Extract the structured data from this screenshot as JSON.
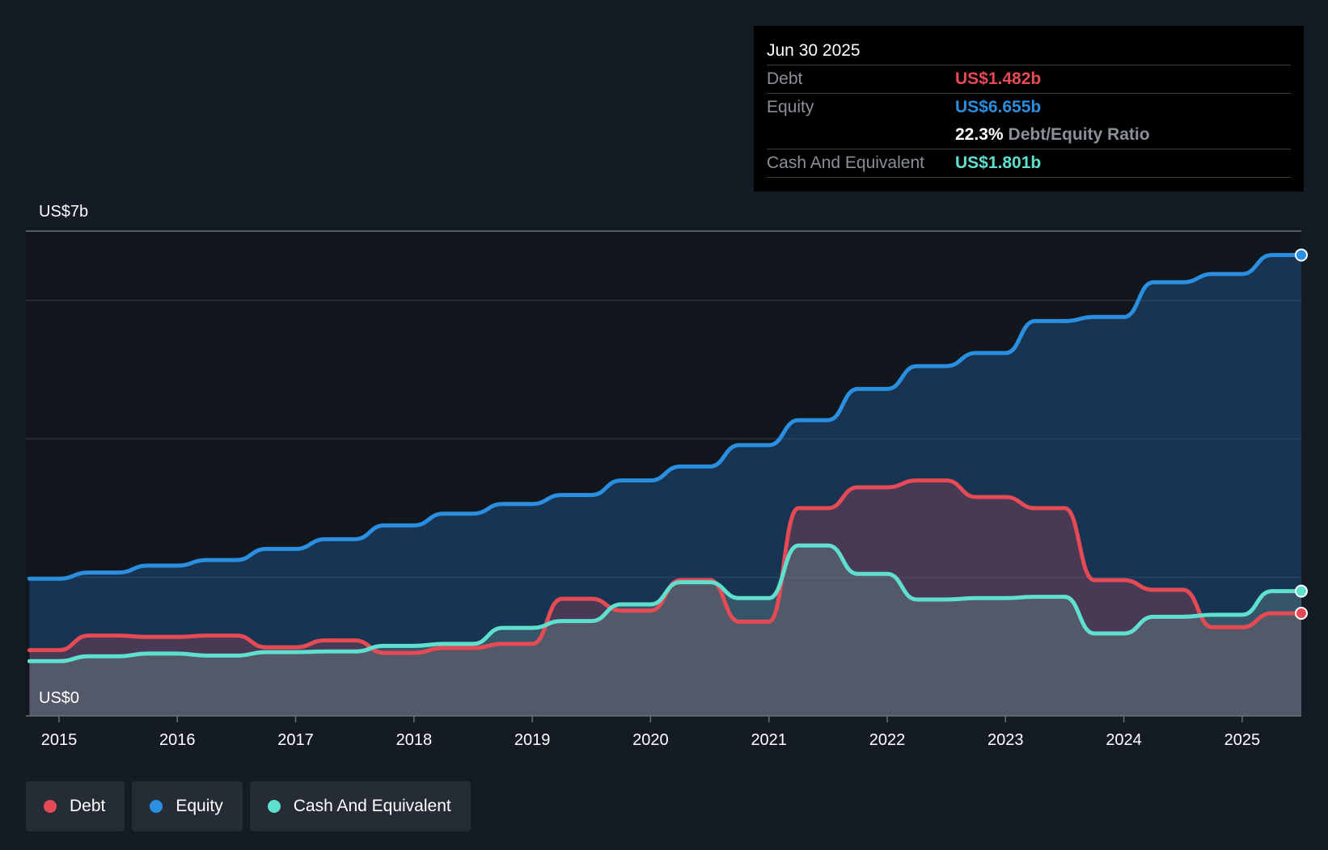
{
  "tooltip": {
    "date": "Jun 30 2025",
    "debt_label": "Debt",
    "debt_value": "US$1.482b",
    "equity_label": "Equity",
    "equity_value": "US$6.655b",
    "ratio_value": "22.3%",
    "ratio_label": "Debt/Equity Ratio",
    "cash_label": "Cash And Equivalent",
    "cash_value": "US$1.801b"
  },
  "colors": {
    "debt": "#e64a55",
    "equity": "#2a8fe0",
    "cash": "#5fe0cf",
    "background": "#151b24"
  },
  "legend": [
    {
      "label": "Debt",
      "color": "#e64a55"
    },
    {
      "label": "Equity",
      "color": "#2a8fe0"
    },
    {
      "label": "Cash And Equivalent",
      "color": "#5fe0cf"
    }
  ],
  "chart_data": {
    "type": "line",
    "title": "",
    "xlabel": "",
    "ylabel": "",
    "y_top_label": "US$7b",
    "y_bottom_label": "US$0",
    "ylim": [
      0,
      7
    ],
    "xlim": [
      2014.72,
      2025.5
    ],
    "x_ticks": [
      "2015",
      "2016",
      "2017",
      "2018",
      "2019",
      "2020",
      "2021",
      "2022",
      "2023",
      "2024",
      "2025"
    ],
    "series": [
      {
        "name": "Equity",
        "points": [
          [
            2014.75,
            1.98
          ],
          [
            2015.0,
            1.98
          ],
          [
            2015.25,
            2.07
          ],
          [
            2015.5,
            2.07
          ],
          [
            2015.75,
            2.17
          ],
          [
            2016.0,
            2.17
          ],
          [
            2016.25,
            2.25
          ],
          [
            2016.5,
            2.25
          ],
          [
            2016.75,
            2.41
          ],
          [
            2017.0,
            2.41
          ],
          [
            2017.25,
            2.55
          ],
          [
            2017.5,
            2.55
          ],
          [
            2017.75,
            2.75
          ],
          [
            2018.0,
            2.75
          ],
          [
            2018.25,
            2.92
          ],
          [
            2018.5,
            2.92
          ],
          [
            2018.75,
            3.06
          ],
          [
            2019.0,
            3.06
          ],
          [
            2019.25,
            3.19
          ],
          [
            2019.5,
            3.19
          ],
          [
            2019.75,
            3.4
          ],
          [
            2020.0,
            3.4
          ],
          [
            2020.25,
            3.6
          ],
          [
            2020.5,
            3.6
          ],
          [
            2020.75,
            3.91
          ],
          [
            2021.0,
            3.91
          ],
          [
            2021.25,
            4.27
          ],
          [
            2021.5,
            4.27
          ],
          [
            2021.75,
            4.72
          ],
          [
            2022.0,
            4.72
          ],
          [
            2022.25,
            5.05
          ],
          [
            2022.5,
            5.05
          ],
          [
            2022.75,
            5.24
          ],
          [
            2023.0,
            5.24
          ],
          [
            2023.25,
            5.7
          ],
          [
            2023.5,
            5.7
          ],
          [
            2023.75,
            5.76
          ],
          [
            2024.0,
            5.76
          ],
          [
            2024.25,
            6.26
          ],
          [
            2024.5,
            6.26
          ],
          [
            2024.75,
            6.38
          ],
          [
            2025.0,
            6.38
          ],
          [
            2025.25,
            6.655
          ],
          [
            2025.5,
            6.655
          ]
        ]
      },
      {
        "name": "Debt",
        "points": [
          [
            2014.75,
            0.95
          ],
          [
            2015.0,
            0.95
          ],
          [
            2015.25,
            1.16
          ],
          [
            2015.5,
            1.16
          ],
          [
            2015.75,
            1.14
          ],
          [
            2016.0,
            1.14
          ],
          [
            2016.25,
            1.16
          ],
          [
            2016.5,
            1.16
          ],
          [
            2016.75,
            0.99
          ],
          [
            2017.0,
            0.99
          ],
          [
            2017.25,
            1.09
          ],
          [
            2017.5,
            1.09
          ],
          [
            2017.75,
            0.91
          ],
          [
            2018.0,
            0.91
          ],
          [
            2018.25,
            0.98
          ],
          [
            2018.5,
            0.98
          ],
          [
            2018.75,
            1.04
          ],
          [
            2019.0,
            1.04
          ],
          [
            2019.25,
            1.69
          ],
          [
            2019.5,
            1.69
          ],
          [
            2019.75,
            1.52
          ],
          [
            2020.0,
            1.52
          ],
          [
            2020.25,
            1.96
          ],
          [
            2020.5,
            1.96
          ],
          [
            2020.75,
            1.36
          ],
          [
            2021.0,
            1.36
          ],
          [
            2021.25,
            3.0
          ],
          [
            2021.5,
            3.0
          ],
          [
            2021.75,
            3.3
          ],
          [
            2022.0,
            3.3
          ],
          [
            2022.25,
            3.4
          ],
          [
            2022.5,
            3.4
          ],
          [
            2022.75,
            3.16
          ],
          [
            2023.0,
            3.16
          ],
          [
            2023.25,
            3.0
          ],
          [
            2023.5,
            3.0
          ],
          [
            2023.75,
            1.96
          ],
          [
            2024.0,
            1.96
          ],
          [
            2024.25,
            1.82
          ],
          [
            2024.5,
            1.82
          ],
          [
            2024.75,
            1.28
          ],
          [
            2025.0,
            1.28
          ],
          [
            2025.25,
            1.482
          ],
          [
            2025.5,
            1.482
          ]
        ]
      },
      {
        "name": "Cash And Equivalent",
        "points": [
          [
            2014.75,
            0.79
          ],
          [
            2015.0,
            0.79
          ],
          [
            2015.25,
            0.86
          ],
          [
            2015.5,
            0.86
          ],
          [
            2015.75,
            0.9
          ],
          [
            2016.0,
            0.9
          ],
          [
            2016.25,
            0.87
          ],
          [
            2016.5,
            0.87
          ],
          [
            2016.75,
            0.92
          ],
          [
            2017.0,
            0.92
          ],
          [
            2017.25,
            0.93
          ],
          [
            2017.5,
            0.93
          ],
          [
            2017.75,
            1.01
          ],
          [
            2018.0,
            1.01
          ],
          [
            2018.25,
            1.04
          ],
          [
            2018.5,
            1.04
          ],
          [
            2018.75,
            1.27
          ],
          [
            2019.0,
            1.27
          ],
          [
            2019.25,
            1.37
          ],
          [
            2019.5,
            1.37
          ],
          [
            2019.75,
            1.61
          ],
          [
            2020.0,
            1.61
          ],
          [
            2020.25,
            1.93
          ],
          [
            2020.5,
            1.93
          ],
          [
            2020.75,
            1.7
          ],
          [
            2021.0,
            1.7
          ],
          [
            2021.25,
            2.46
          ],
          [
            2021.5,
            2.46
          ],
          [
            2021.75,
            2.05
          ],
          [
            2022.0,
            2.05
          ],
          [
            2022.25,
            1.68
          ],
          [
            2022.5,
            1.68
          ],
          [
            2022.75,
            1.7
          ],
          [
            2023.0,
            1.7
          ],
          [
            2023.25,
            1.72
          ],
          [
            2023.5,
            1.72
          ],
          [
            2023.75,
            1.19
          ],
          [
            2024.0,
            1.19
          ],
          [
            2024.25,
            1.43
          ],
          [
            2024.5,
            1.43
          ],
          [
            2024.75,
            1.46
          ],
          [
            2025.0,
            1.46
          ],
          [
            2025.25,
            1.801
          ],
          [
            2025.5,
            1.801
          ]
        ]
      }
    ],
    "gridlines": [
      0,
      2,
      4,
      6,
      7
    ],
    "highlighted_date": "Jun 30 2025",
    "legend_position": "bottom-left"
  }
}
